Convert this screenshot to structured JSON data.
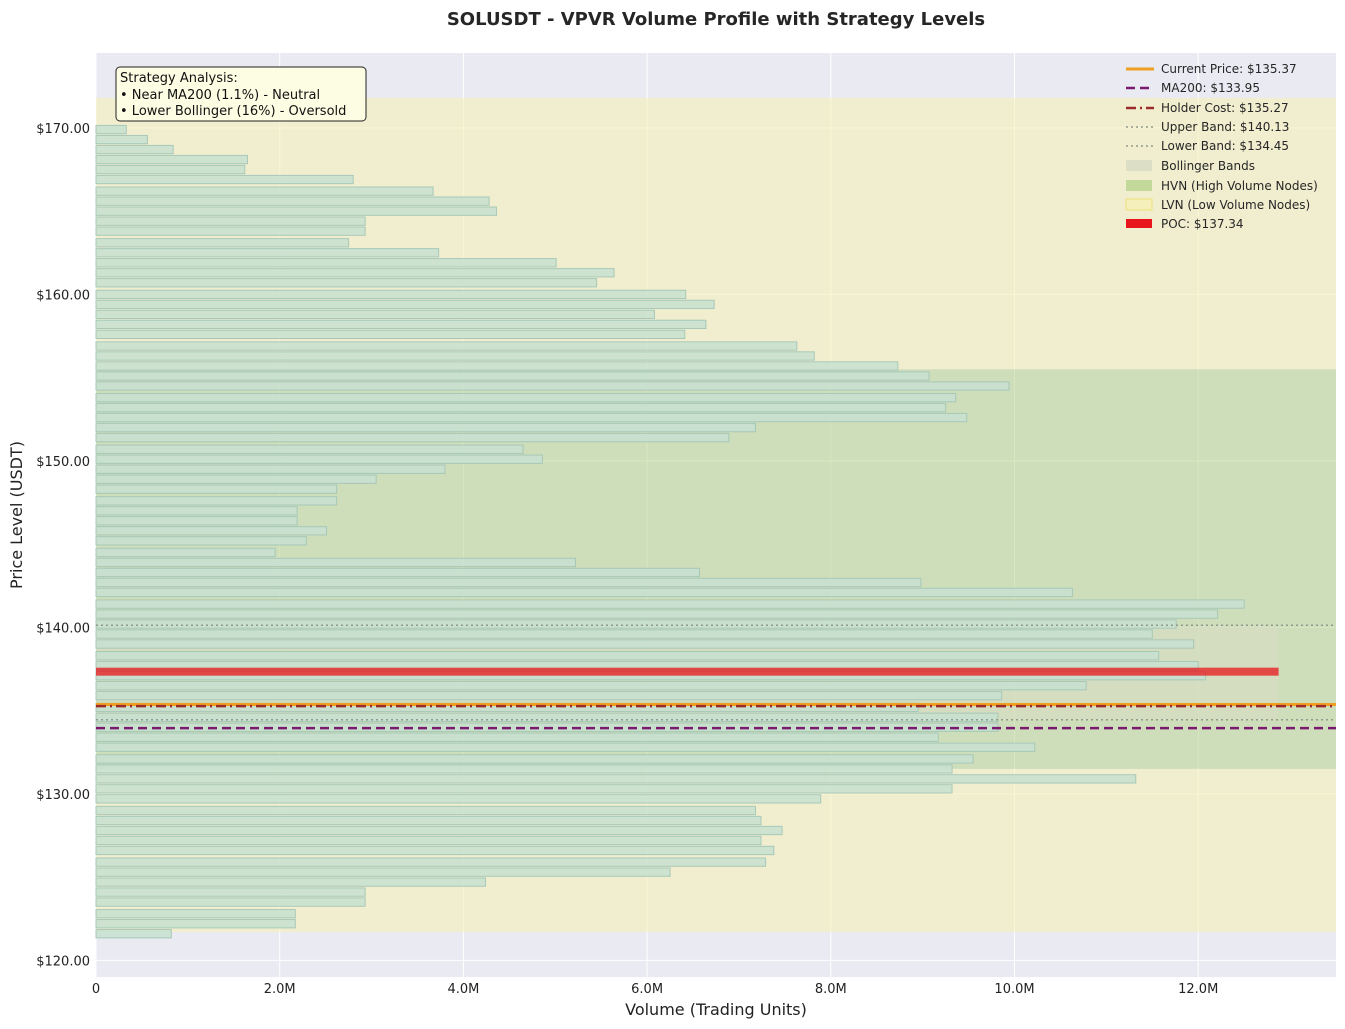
{
  "chart_data": {
    "type": "bar",
    "orientation": "horizontal",
    "title": "SOLUSDT - VPVR Volume Profile with Strategy Levels",
    "xlabel": "Volume (Trading Units)",
    "ylabel": "Price Level (USDT)",
    "xlim": [
      0,
      13500000
    ],
    "ylim": [
      119,
      174.5
    ],
    "x_ticks": [
      0,
      2000000,
      4000000,
      6000000,
      8000000,
      10000000,
      12000000
    ],
    "x_tick_labels": [
      "0",
      "2.0M",
      "4.0M",
      "6.0M",
      "8.0M",
      "10.0M",
      "12.0M"
    ],
    "y_ticks": [
      120,
      130,
      140,
      150,
      160,
      170
    ],
    "y_tick_labels": [
      "$120.00",
      "$130.00",
      "$140.00",
      "$150.00",
      "$160.00",
      "$170.00"
    ],
    "grid": true,
    "bin_size": 0.5,
    "bins": [
      {
        "price": 121.6,
        "volume": 820000
      },
      {
        "price": 122.2,
        "volume": 2170000
      },
      {
        "price": 122.8,
        "volume": 2170000
      },
      {
        "price": 123.5,
        "volume": 2930000
      },
      {
        "price": 124.1,
        "volume": 2930000
      },
      {
        "price": 124.7,
        "volume": 4240000
      },
      {
        "price": 125.3,
        "volume": 6250000
      },
      {
        "price": 125.9,
        "volume": 7290000
      },
      {
        "price": 126.6,
        "volume": 7380000
      },
      {
        "price": 127.2,
        "volume": 7240000
      },
      {
        "price": 127.8,
        "volume": 7470000
      },
      {
        "price": 128.4,
        "volume": 7240000
      },
      {
        "price": 129.0,
        "volume": 7180000
      },
      {
        "price": 129.7,
        "volume": 7890000
      },
      {
        "price": 130.3,
        "volume": 9320000
      },
      {
        "price": 130.9,
        "volume": 11320000
      },
      {
        "price": 131.5,
        "volume": 9320000
      },
      {
        "price": 132.1,
        "volume": 9550000
      },
      {
        "price": 132.8,
        "volume": 10220000
      },
      {
        "price": 133.4,
        "volume": 9170000
      },
      {
        "price": 134.0,
        "volume": 9820000
      },
      {
        "price": 134.6,
        "volume": 9820000
      },
      {
        "price": 135.2,
        "volume": 8950000
      },
      {
        "price": 135.9,
        "volume": 9860000
      },
      {
        "price": 136.5,
        "volume": 10780000
      },
      {
        "price": 137.1,
        "volume": 12080000
      },
      {
        "price": 137.7,
        "volume": 12000000
      },
      {
        "price": 138.3,
        "volume": 11570000
      },
      {
        "price": 139.0,
        "volume": 11950000
      },
      {
        "price": 139.6,
        "volume": 11500000
      },
      {
        "price": 140.2,
        "volume": 11760000
      },
      {
        "price": 140.8,
        "volume": 12210000
      },
      {
        "price": 141.4,
        "volume": 12500000
      },
      {
        "price": 142.1,
        "volume": 10630000
      },
      {
        "price": 142.7,
        "volume": 8980000
      },
      {
        "price": 143.3,
        "volume": 6570000
      },
      {
        "price": 143.9,
        "volume": 5220000
      },
      {
        "price": 144.5,
        "volume": 1950000
      },
      {
        "price": 145.2,
        "volume": 2290000
      },
      {
        "price": 145.8,
        "volume": 2510000
      },
      {
        "price": 146.4,
        "volume": 2190000
      },
      {
        "price": 147.0,
        "volume": 2190000
      },
      {
        "price": 147.6,
        "volume": 2620000
      },
      {
        "price": 148.3,
        "volume": 2620000
      },
      {
        "price": 148.9,
        "volume": 3050000
      },
      {
        "price": 149.5,
        "volume": 3800000
      },
      {
        "price": 150.1,
        "volume": 4860000
      },
      {
        "price": 150.7,
        "volume": 4650000
      },
      {
        "price": 151.4,
        "volume": 6890000
      },
      {
        "price": 152.0,
        "volume": 7180000
      },
      {
        "price": 152.6,
        "volume": 9480000
      },
      {
        "price": 153.2,
        "volume": 9250000
      },
      {
        "price": 153.8,
        "volume": 9360000
      },
      {
        "price": 154.5,
        "volume": 9940000
      },
      {
        "price": 155.1,
        "volume": 9070000
      },
      {
        "price": 155.7,
        "volume": 8730000
      },
      {
        "price": 156.3,
        "volume": 7820000
      },
      {
        "price": 156.9,
        "volume": 7630000
      },
      {
        "price": 157.6,
        "volume": 6410000
      },
      {
        "price": 158.2,
        "volume": 6640000
      },
      {
        "price": 158.8,
        "volume": 6080000
      },
      {
        "price": 159.4,
        "volume": 6730000
      },
      {
        "price": 160.0,
        "volume": 6420000
      },
      {
        "price": 160.7,
        "volume": 5450000
      },
      {
        "price": 161.3,
        "volume": 5640000
      },
      {
        "price": 161.9,
        "volume": 5010000
      },
      {
        "price": 162.5,
        "volume": 3730000
      },
      {
        "price": 163.1,
        "volume": 2750000
      },
      {
        "price": 163.8,
        "volume": 2930000
      },
      {
        "price": 164.4,
        "volume": 2930000
      },
      {
        "price": 165.0,
        "volume": 4360000
      },
      {
        "price": 165.6,
        "volume": 4280000
      },
      {
        "price": 166.2,
        "volume": 3670000
      },
      {
        "price": 166.9,
        "volume": 2800000
      },
      {
        "price": 167.5,
        "volume": 1620000
      },
      {
        "price": 168.1,
        "volume": 1650000
      },
      {
        "price": 168.7,
        "volume": 840000
      },
      {
        "price": 169.3,
        "volume": 560000
      },
      {
        "price": 169.9,
        "volume": 330000
      }
    ],
    "hvn_ranges": [
      [
        131.5,
        155.5
      ]
    ],
    "lvn_ranges": [
      [
        121.7,
        131.5
      ],
      [
        155.5,
        171.8
      ]
    ],
    "bollinger_band": [
      134.45,
      140.13
    ],
    "lines": [
      {
        "key": "current",
        "value": 135.37,
        "label": "Current Price: $135.37",
        "color": "#f0a020",
        "style": "solid"
      },
      {
        "key": "ma200",
        "value": 133.95,
        "label": "MA200: $133.95",
        "color": "#7a1a6e",
        "style": "dashed"
      },
      {
        "key": "holder",
        "value": 135.27,
        "label": "Holder Cost: $135.27",
        "color": "#9b2a2a",
        "style": "dashdot"
      },
      {
        "key": "upper",
        "value": 140.13,
        "label": "Upper Band: $140.13",
        "color": "#8f9a8c",
        "style": "dotted"
      },
      {
        "key": "lower",
        "value": 134.45,
        "label": "Lower Band: $134.45",
        "color": "#8f9a8c",
        "style": "dotted"
      }
    ],
    "poc": {
      "value": 137.34,
      "label": "POC: $137.34",
      "color": "#e8151b"
    },
    "legend": {
      "placement": "top-right",
      "patch_labels": [
        "Bollinger Bands",
        "HVN (High Volume Nodes)",
        "LVN (Low Volume Nodes)"
      ]
    },
    "annotation": {
      "placement": "top-left",
      "lines": [
        "Strategy Analysis:",
        "• Near MA200 (1.1%) - Neutral",
        "• Lower Bollinger (16%) - Oversold"
      ]
    }
  },
  "colors": {
    "plot_bg": "#eaeaf2",
    "bar_fill": "#c7e0d0",
    "bar_edge": "#a8c8b8",
    "hvn_fill": "#b7d38c",
    "lvn_fill": "#f5f0b8",
    "band_fill": "#d9ddc4",
    "annotation_bg": "#fdfde3"
  }
}
